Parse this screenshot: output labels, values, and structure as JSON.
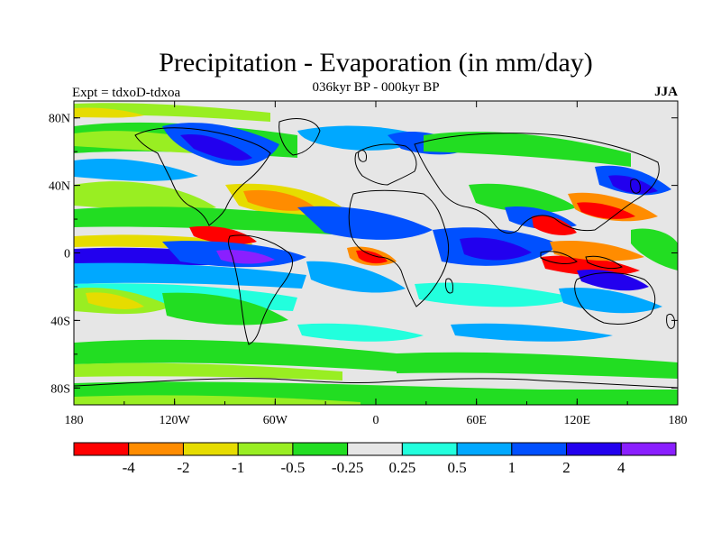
{
  "title": "Precipitation - Evaporation (in mm/day)",
  "subtitle": "036kyr BP - 000kyr BP",
  "left_label": "Expt = tdxoD-tdxoa",
  "right_label": "JJA",
  "axes": {
    "lat_ticks": [
      "80N",
      "40N",
      "0",
      "40S",
      "80S"
    ],
    "lat_values": [
      80,
      40,
      0,
      -40,
      -80
    ],
    "lon_ticks": [
      "180",
      "120W",
      "60W",
      "0",
      "60E",
      "120E",
      "180"
    ],
    "lon_values": [
      -180,
      -120,
      -60,
      0,
      60,
      120,
      180
    ],
    "lat_range": [
      -90,
      90
    ],
    "lon_range": [
      -180,
      180
    ]
  },
  "colorbar": {
    "labels": [
      "-4",
      "-2",
      "-1",
      "-0.5",
      "-0.25",
      "0.25",
      "0.5",
      "1",
      "2",
      "4"
    ],
    "colors": [
      "#ff0000",
      "#ff8c00",
      "#e6dc00",
      "#99ee22",
      "#22dd22",
      "#e6e6e6",
      "#22ffdd",
      "#00a8ff",
      "#0050ff",
      "#2200ee",
      "#8a1fff"
    ]
  },
  "colors": {
    "background_field": "#e6e6e6",
    "coastline": "#000000"
  }
}
